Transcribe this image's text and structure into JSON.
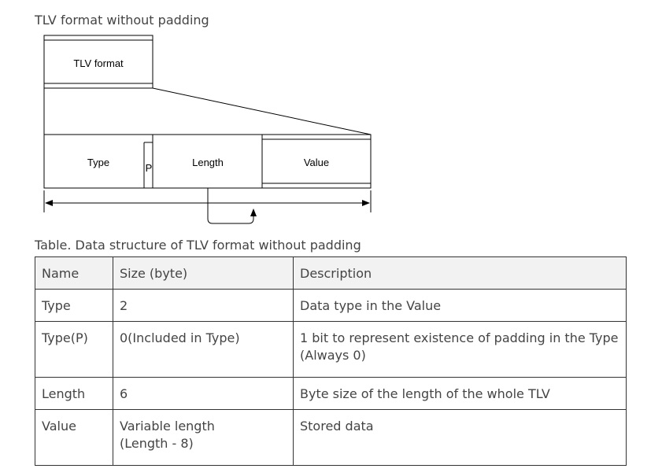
{
  "figure": {
    "heading": "TLV format without padding",
    "labels": {
      "tlv_format": "TLV format",
      "type": "Type",
      "padding_bit": "P",
      "length": "Length",
      "value": "Value"
    }
  },
  "table": {
    "caption": "Table. Data structure of TLV format without padding",
    "headers": [
      "Name",
      "Size (byte)",
      "Description"
    ],
    "rows": [
      {
        "name": "Type",
        "size": "2",
        "description": "Data type in the Value"
      },
      {
        "name": "Type(P)",
        "size": "0(Included in Type)",
        "description": "1 bit to represent existence of padding in the Type (Always 0)"
      },
      {
        "name": "Length",
        "size": "6",
        "description": "Byte size of the length of the whole TLV"
      },
      {
        "name": "Value",
        "size": "Variable length\n(Length - 8)",
        "description": "Stored data"
      }
    ]
  }
}
